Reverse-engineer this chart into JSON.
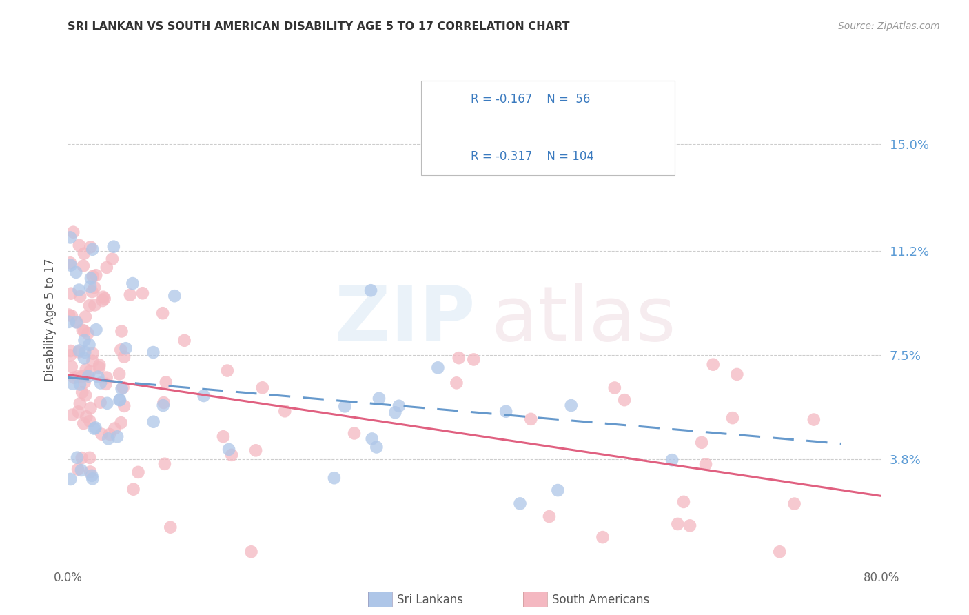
{
  "title": "SRI LANKAN VS SOUTH AMERICAN DISABILITY AGE 5 TO 17 CORRELATION CHART",
  "source": "Source: ZipAtlas.com",
  "ylabel": "Disability Age 5 to 17",
  "ytick_labels": [
    "15.0%",
    "11.2%",
    "7.5%",
    "3.8%"
  ],
  "ytick_values": [
    0.15,
    0.112,
    0.075,
    0.038
  ],
  "xlim": [
    0.0,
    0.8
  ],
  "ylim": [
    0.0,
    0.175
  ],
  "sri_lankan_R": -0.167,
  "sri_lankan_N": 56,
  "south_american_R": -0.317,
  "south_american_N": 104,
  "sri_lankan_color": "#aec6e8",
  "south_american_color": "#f4b8c1",
  "sri_lankan_line_color": "#6699cc",
  "south_american_line_color": "#e06080",
  "legend_text_color": "#3a7abf",
  "right_tick_color": "#5b9bd5",
  "background_color": "#ffffff",
  "grid_color": "#c8c8c8",
  "point_size": 180,
  "point_alpha": 0.75
}
